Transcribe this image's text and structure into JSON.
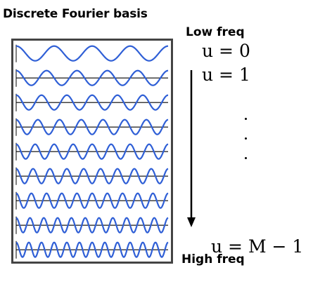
{
  "title": "Discrete Fourier basis",
  "low_label": "Low freq",
  "high_label": "High freq",
  "index_first": "u = 0",
  "index_second": "u = 1",
  "index_last": "u = M − 1",
  "colors": {
    "wave": "#2f5fd6",
    "axis": "#000000",
    "frame": "#444444"
  },
  "chart_data": {
    "type": "line",
    "rows": [
      {
        "cycles": 4
      },
      {
        "cycles": 5
      },
      {
        "cycles": 6
      },
      {
        "cycles": 7
      },
      {
        "cycles": 8
      },
      {
        "cycles": 9
      },
      {
        "cycles": 10
      },
      {
        "cycles": 11
      },
      {
        "cycles": 12
      }
    ]
  }
}
